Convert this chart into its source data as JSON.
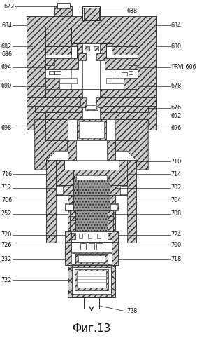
{
  "title": "Фиг.13",
  "background_color": "#ffffff",
  "line_color": "#2a2a2a",
  "metal_fc": "#cccccc",
  "metal_hatch": "////",
  "dark_fc": "#999999",
  "fig_label_fontsize": 11,
  "labels_left": [
    [
      "622",
      100,
      12
    ],
    [
      "684",
      10,
      40
    ],
    [
      "682",
      10,
      65
    ],
    [
      "686",
      10,
      80
    ],
    [
      "694",
      10,
      100
    ],
    [
      "690",
      10,
      128
    ],
    [
      "698",
      10,
      188
    ],
    [
      "716",
      10,
      240
    ],
    [
      "712",
      10,
      268
    ],
    [
      "706",
      10,
      288
    ],
    [
      "252",
      10,
      306
    ],
    [
      "720",
      10,
      334
    ],
    [
      "726",
      10,
      352
    ],
    [
      "232",
      10,
      372
    ],
    [
      "722",
      10,
      400
    ]
  ],
  "labels_right": [
    [
      "688",
      190,
      12
    ],
    [
      "684",
      260,
      40
    ],
    [
      "680",
      260,
      65
    ],
    [
      "PRVI-606",
      260,
      100
    ],
    [
      "678",
      260,
      128
    ],
    [
      "676",
      260,
      155
    ],
    [
      "692",
      260,
      175
    ],
    [
      "696",
      260,
      188
    ],
    [
      "710",
      260,
      222
    ],
    [
      "714",
      260,
      240
    ],
    [
      "702",
      260,
      268
    ],
    [
      "704",
      260,
      288
    ],
    [
      "708",
      260,
      306
    ],
    [
      "724",
      260,
      334
    ],
    [
      "700",
      260,
      352
    ],
    [
      "718",
      260,
      372
    ],
    [
      "728",
      190,
      445
    ]
  ]
}
